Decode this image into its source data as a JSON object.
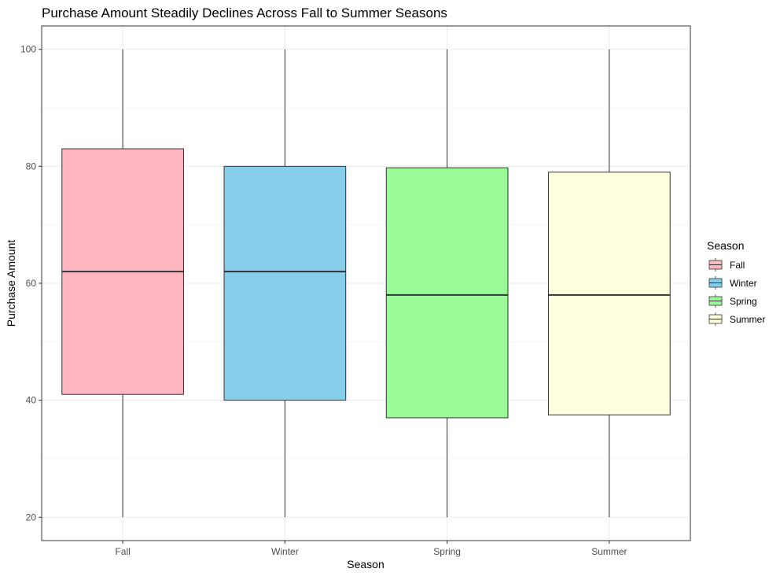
{
  "chart_data": {
    "type": "box",
    "title": "Purchase Amount Steadily Declines Across Fall to Summer Seasons",
    "xlabel": "Season",
    "ylabel": "Purchase Amount",
    "categories": [
      "Fall",
      "Winter",
      "Spring",
      "Summer"
    ],
    "ylim": [
      16,
      104
    ],
    "yticks": [
      20,
      40,
      60,
      80,
      100
    ],
    "grid": true,
    "legend_title": "Season",
    "legend_position": "right",
    "series": [
      {
        "name": "Fall",
        "color": "#FFB6C1",
        "min": 20,
        "q1": 41,
        "median": 62,
        "q3": 83,
        "max": 100
      },
      {
        "name": "Winter",
        "color": "#87CEEB",
        "min": 20,
        "q1": 40,
        "median": 62,
        "q3": 80,
        "max": 100
      },
      {
        "name": "Spring",
        "color": "#98FB98",
        "min": 20,
        "q1": 37,
        "median": 58,
        "q3": 79.75,
        "max": 100
      },
      {
        "name": "Summer",
        "color": "#FFFFE0",
        "min": 20,
        "q1": 37.5,
        "median": 58,
        "q3": 79,
        "max": 100
      }
    ]
  }
}
